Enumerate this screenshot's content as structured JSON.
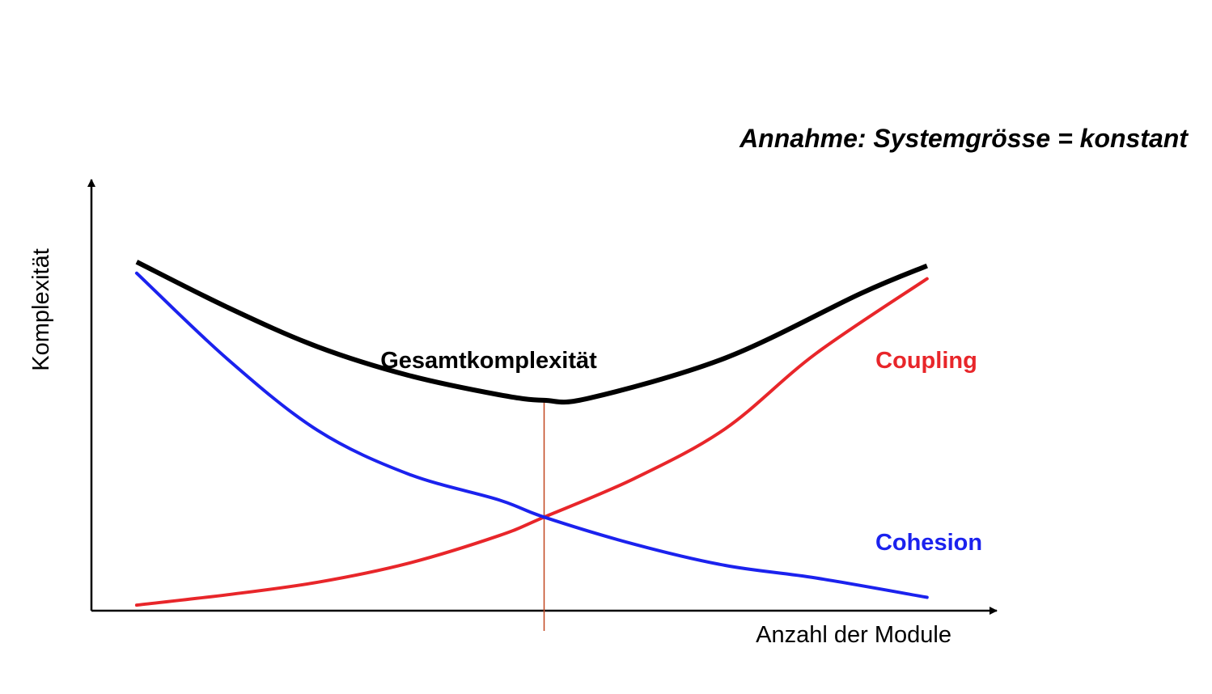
{
  "annotation": "Annahme: Systemgrösse = konstant",
  "colors": {
    "axis": "#000000",
    "gesamt": "#000000",
    "coupling": "#e8262a",
    "cohesion": "#1b22ee",
    "marker": "#c2461f"
  },
  "chart_data": {
    "type": "line",
    "title": "",
    "xlabel": "Anzahl der Module",
    "ylabel": "Komplexität",
    "xlim": [
      0,
      100
    ],
    "ylim": [
      0,
      100
    ],
    "grid": false,
    "ticks": "none",
    "series": [
      {
        "name": "Gesamtkomplexität",
        "color": "#000000",
        "points": [
          [
            5,
            80.9
          ],
          [
            15,
            70.4
          ],
          [
            25,
            61.2
          ],
          [
            35,
            54.6
          ],
          [
            45,
            50.1
          ],
          [
            50,
            48.8
          ],
          [
            55,
            49.3
          ],
          [
            70,
            58.6
          ],
          [
            85,
            73.6
          ],
          [
            92.3,
            80.0
          ]
        ]
      },
      {
        "name": "Coupling",
        "color": "#e8262a",
        "points": [
          [
            5,
            1.3
          ],
          [
            15,
            3.7
          ],
          [
            25,
            6.6
          ],
          [
            35,
            11.0
          ],
          [
            45,
            17.4
          ],
          [
            50,
            21.7
          ],
          [
            60,
            30.7
          ],
          [
            70,
            42.2
          ],
          [
            80,
            59.6
          ],
          [
            92.3,
            77.0
          ]
        ]
      },
      {
        "name": "Cohesion",
        "color": "#1b22ee",
        "points": [
          [
            5,
            78.3
          ],
          [
            15,
            58.4
          ],
          [
            25,
            41.8
          ],
          [
            35,
            31.7
          ],
          [
            45,
            25.7
          ],
          [
            50,
            21.7
          ],
          [
            60,
            15.4
          ],
          [
            70,
            10.5
          ],
          [
            80,
            7.6
          ],
          [
            92.3,
            3.1
          ]
        ]
      }
    ],
    "optimum_x": 50
  }
}
